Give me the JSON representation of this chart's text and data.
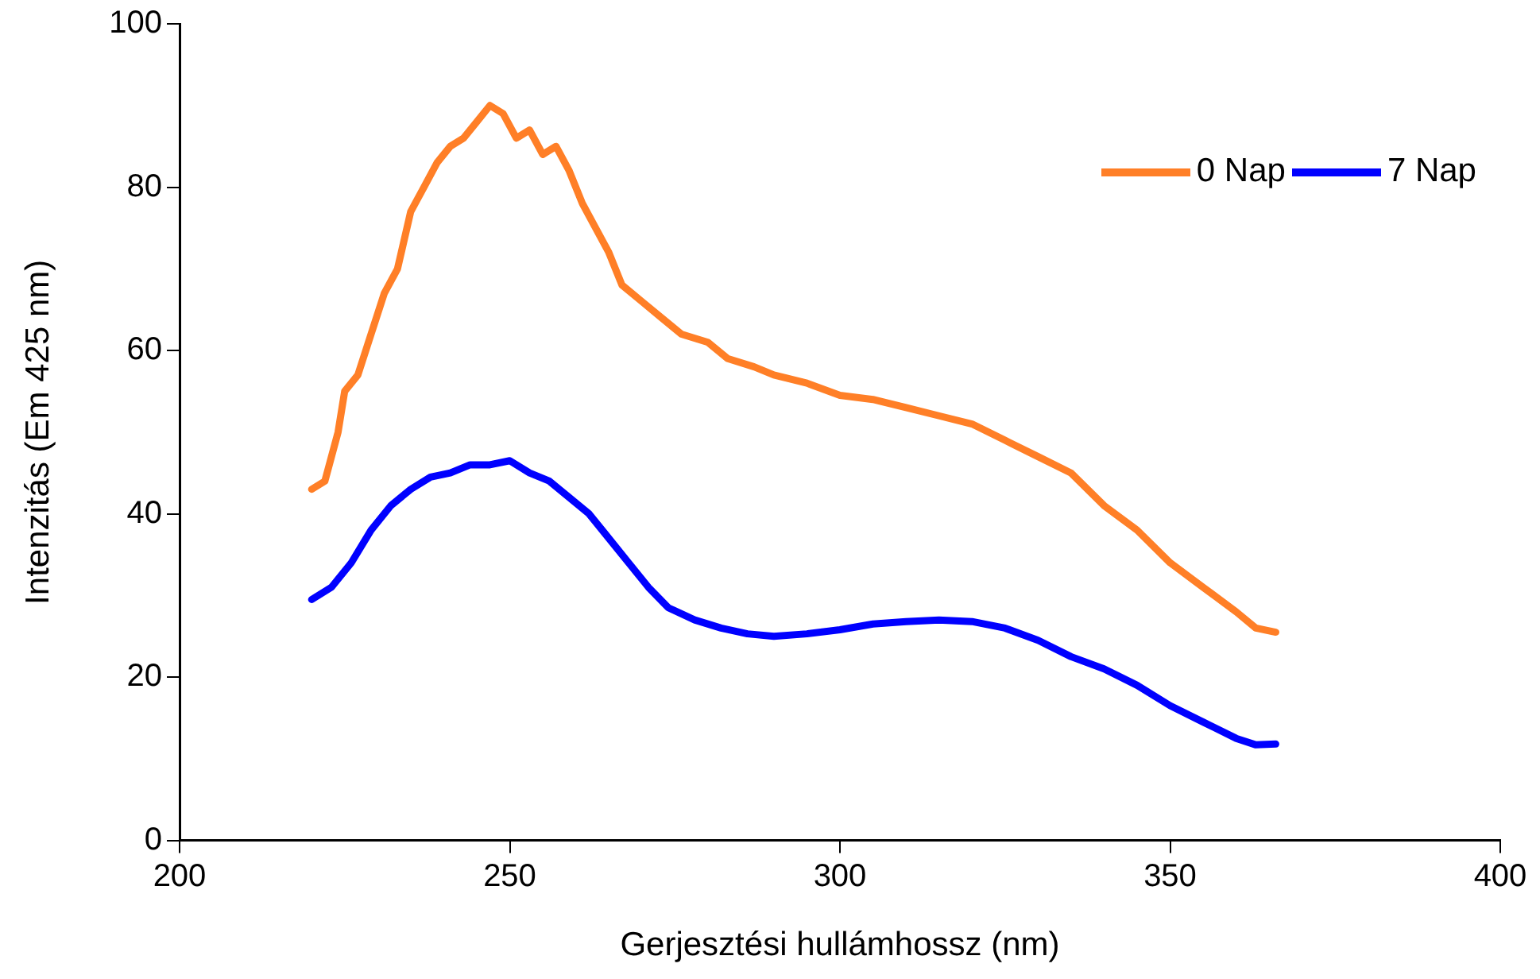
{
  "chart_data": {
    "type": "line",
    "xlabel": "Gerjesztési hullámhossz (nm)",
    "ylabel": "Intenzitás (Em 425 nm)",
    "xlim": [
      200,
      400
    ],
    "xticks": [
      200,
      250,
      300,
      350,
      400
    ],
    "ylim": [
      0,
      100
    ],
    "yticks": [
      0,
      20,
      40,
      60,
      80,
      100
    ],
    "grid": false,
    "legend": "top right",
    "series": [
      {
        "name": "0 Nap",
        "color": "#ff7f27",
        "x": [
          220,
          222,
          224,
          225,
          227,
          229,
          231,
          233,
          235,
          237,
          239,
          241,
          243,
          245,
          247,
          249,
          251,
          253,
          255,
          257,
          259,
          261,
          263,
          265,
          267,
          270,
          273,
          276,
          280,
          283,
          287,
          290,
          295,
          300,
          305,
          310,
          315,
          320,
          325,
          330,
          335,
          340,
          345,
          350,
          355,
          360,
          363,
          366
        ],
        "values": [
          43,
          44,
          50,
          55,
          57,
          62,
          67,
          70,
          77,
          80,
          83,
          85,
          86,
          88,
          90,
          89,
          86,
          87,
          84,
          85,
          82,
          78,
          75,
          72,
          68,
          66,
          64,
          62,
          61,
          59,
          58,
          57,
          56,
          54.5,
          54,
          53,
          52,
          51,
          49,
          47,
          45,
          41,
          38,
          34,
          31,
          28,
          26,
          25.5
        ]
      },
      {
        "name": "7 Nap",
        "color": "#0000ff",
        "x": [
          220,
          223,
          226,
          229,
          232,
          235,
          238,
          241,
          244,
          247,
          250,
          253,
          256,
          259,
          262,
          265,
          268,
          271,
          274,
          278,
          282,
          286,
          290,
          295,
          300,
          305,
          310,
          315,
          320,
          325,
          330,
          335,
          340,
          345,
          350,
          355,
          360,
          363,
          366
        ],
        "values": [
          29.5,
          31,
          34,
          38,
          41,
          43,
          44.5,
          45,
          46,
          46,
          46.5,
          45,
          44,
          42,
          40,
          37,
          34,
          31,
          28.5,
          27,
          26,
          25.3,
          25,
          25.3,
          25.8,
          26.5,
          26.8,
          27,
          26.8,
          26,
          24.5,
          22.5,
          21,
          19,
          16.5,
          14.5,
          12.5,
          11.7,
          11.8
        ]
      }
    ]
  }
}
